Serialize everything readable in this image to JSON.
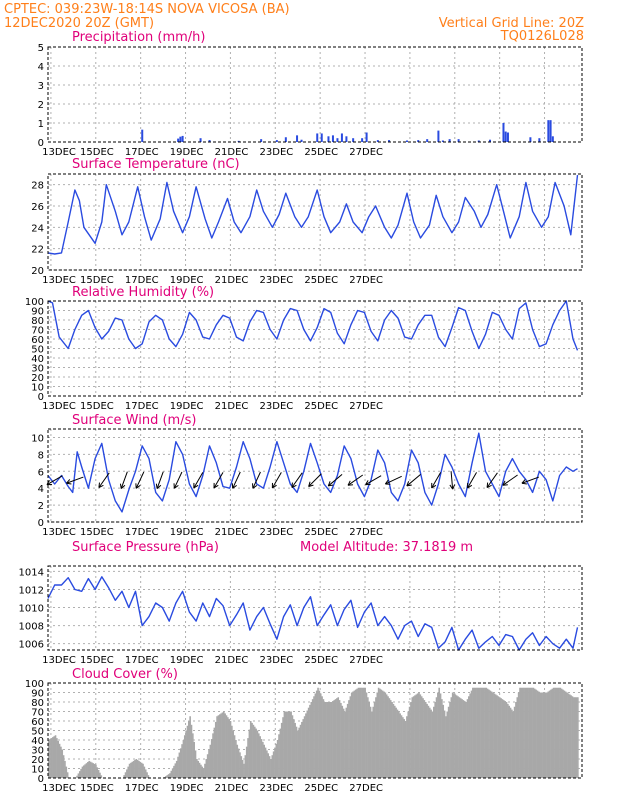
{
  "header": {
    "line1_left": "CPTEC:    039:23W-18:14S    NOVA VICOSA (BA)",
    "line2_left": "12DEC2020 20Z (GMT)",
    "line1_right": "Vertical Grid Line: 20Z",
    "line2_right": "TQ0126L028"
  },
  "colors": {
    "header": "#ff7f1a",
    "title": "#e0007a",
    "series": "#2a4be0",
    "cloud": "#a8a8a8"
  },
  "date_labels": [
    "13DEC",
    "15DEC",
    "17DEC",
    "19DEC",
    "21DEC",
    "23DEC",
    "25DEC",
    "27DEC"
  ],
  "chart_data": [
    {
      "type": "bar",
      "title": "Precipitation (mm/h)",
      "ylim": [
        0,
        5
      ],
      "yticks": [
        0,
        1,
        2,
        3,
        4,
        5
      ],
      "x_units": "days since 12DEC2020 20Z",
      "points": [
        [
          4.2,
          0.65
        ],
        [
          5.8,
          0.18
        ],
        [
          5.9,
          0.28
        ],
        [
          6.0,
          0.32
        ],
        [
          6.8,
          0.2
        ],
        [
          7.2,
          0.1
        ],
        [
          8.5,
          0.06
        ],
        [
          9.5,
          0.15
        ],
        [
          10.2,
          0.1
        ],
        [
          10.6,
          0.25
        ],
        [
          11.1,
          0.35
        ],
        [
          11.3,
          0.12
        ],
        [
          12.0,
          0.45
        ],
        [
          12.2,
          0.45
        ],
        [
          12.5,
          0.3
        ],
        [
          12.7,
          0.35
        ],
        [
          12.9,
          0.2
        ],
        [
          13.1,
          0.45
        ],
        [
          13.3,
          0.3
        ],
        [
          13.6,
          0.2
        ],
        [
          14.0,
          0.2
        ],
        [
          14.2,
          0.5
        ],
        [
          14.7,
          0.1
        ],
        [
          15.2,
          0.1
        ],
        [
          16.0,
          0.08
        ],
        [
          16.5,
          0.1
        ],
        [
          16.9,
          0.15
        ],
        [
          17.4,
          0.6
        ],
        [
          17.6,
          0.08
        ],
        [
          17.9,
          0.15
        ],
        [
          18.3,
          0.15
        ],
        [
          19.2,
          0.08
        ],
        [
          19.7,
          0.12
        ],
        [
          20.3,
          1.0
        ],
        [
          20.4,
          0.55
        ],
        [
          20.5,
          0.5
        ],
        [
          21.5,
          0.25
        ],
        [
          21.9,
          0.2
        ],
        [
          22.3,
          1.15
        ],
        [
          22.4,
          1.15
        ],
        [
          22.5,
          0.3
        ]
      ]
    },
    {
      "type": "line",
      "title": "Surface Temperature (nC)",
      "ylim": [
        20,
        29
      ],
      "yticks": [
        20,
        22,
        24,
        26,
        28
      ],
      "x_units": "days since 12DEC2020 20Z",
      "x": [
        0,
        0.3,
        0.6,
        0.9,
        1.2,
        1.4,
        1.6,
        2.1,
        2.4,
        2.6,
        3.0,
        3.3,
        3.6,
        4.0,
        4.3,
        4.6,
        5.0,
        5.3,
        5.6,
        6.0,
        6.3,
        6.6,
        7.0,
        7.3,
        7.6,
        8.0,
        8.3,
        8.6,
        9.0,
        9.3,
        9.6,
        10.0,
        10.3,
        10.6,
        11.0,
        11.3,
        11.6,
        12.0,
        12.3,
        12.6,
        13.0,
        13.3,
        13.6,
        14.0,
        14.3,
        14.6,
        15.0,
        15.3,
        15.6,
        16.0,
        16.3,
        16.6,
        17.0,
        17.3,
        17.6,
        18.0,
        18.3,
        18.6,
        19.0,
        19.3,
        19.6,
        20.0,
        20.3,
        20.6,
        21.0,
        21.3,
        21.6,
        22.0,
        22.3,
        22.6,
        23.0,
        23.3,
        23.6
      ],
      "y": [
        21.6,
        21.5,
        21.6,
        24.5,
        27.5,
        26.5,
        24.0,
        22.5,
        24.5,
        28.0,
        25.5,
        23.3,
        24.5,
        27.8,
        25.0,
        22.8,
        24.8,
        28.2,
        25.5,
        23.5,
        25.0,
        27.8,
        24.8,
        23.0,
        24.5,
        26.7,
        24.5,
        23.5,
        25.0,
        27.5,
        25.5,
        24.0,
        25.2,
        27.2,
        25.0,
        24.0,
        25.0,
        27.5,
        25.0,
        23.5,
        24.5,
        26.2,
        24.5,
        23.5,
        25.0,
        26.0,
        24.0,
        23.0,
        24.2,
        27.2,
        24.5,
        23.0,
        24.2,
        27.0,
        25.0,
        23.5,
        24.5,
        26.8,
        25.5,
        24.0,
        25.2,
        28.0,
        25.5,
        23.0,
        25.0,
        28.2,
        25.5,
        24.0,
        25.0,
        28.2,
        26.0,
        23.3,
        28.9
      ]
    },
    {
      "type": "line",
      "title": "Relative Humidity (%)",
      "ylim": [
        0,
        100
      ],
      "yticks": [
        0,
        10,
        20,
        30,
        40,
        50,
        60,
        70,
        80,
        90,
        100
      ],
      "x_units": "days since 12DEC2020 20Z",
      "x": [
        0,
        0.2,
        0.5,
        0.9,
        1.2,
        1.5,
        1.8,
        2.1,
        2.4,
        2.7,
        3.0,
        3.3,
        3.6,
        3.9,
        4.2,
        4.5,
        4.8,
        5.1,
        5.4,
        5.7,
        6.0,
        6.3,
        6.6,
        6.9,
        7.2,
        7.5,
        7.8,
        8.1,
        8.4,
        8.7,
        9.0,
        9.3,
        9.6,
        9.9,
        10.2,
        10.5,
        10.8,
        11.1,
        11.4,
        11.7,
        12.0,
        12.3,
        12.6,
        12.9,
        13.2,
        13.5,
        13.8,
        14.1,
        14.4,
        14.7,
        15.0,
        15.3,
        15.6,
        15.9,
        16.2,
        16.5,
        16.8,
        17.1,
        17.4,
        17.7,
        18.0,
        18.3,
        18.6,
        18.9,
        19.2,
        19.5,
        19.8,
        20.1,
        20.4,
        20.7,
        21.0,
        21.3,
        21.6,
        21.9,
        22.2,
        22.5,
        22.8,
        23.1,
        23.4,
        23.6
      ],
      "y": [
        100,
        98,
        62,
        50,
        70,
        85,
        90,
        72,
        60,
        68,
        82,
        80,
        60,
        50,
        55,
        78,
        85,
        80,
        60,
        52,
        65,
        88,
        80,
        62,
        60,
        75,
        85,
        82,
        62,
        58,
        78,
        90,
        88,
        70,
        60,
        80,
        92,
        90,
        70,
        58,
        72,
        92,
        88,
        66,
        55,
        75,
        90,
        88,
        68,
        58,
        80,
        90,
        82,
        62,
        60,
        75,
        85,
        85,
        62,
        52,
        72,
        93,
        90,
        68,
        50,
        65,
        88,
        85,
        70,
        60,
        92,
        98,
        70,
        52,
        55,
        75,
        90,
        100,
        60,
        48
      ]
    },
    {
      "type": "line",
      "title": "Surface Wind (m/s)",
      "ylim": [
        0,
        11
      ],
      "yticks": [
        0,
        2,
        4,
        6,
        8,
        10
      ],
      "x_units": "days since 12DEC2020 20Z",
      "x": [
        0,
        0.3,
        0.6,
        0.9,
        1.1,
        1.3,
        1.5,
        1.8,
        2.1,
        2.4,
        2.7,
        3.0,
        3.3,
        3.6,
        3.9,
        4.2,
        4.5,
        4.8,
        5.1,
        5.4,
        5.7,
        6.0,
        6.3,
        6.6,
        6.9,
        7.2,
        7.5,
        7.8,
        8.1,
        8.4,
        8.7,
        9.0,
        9.3,
        9.6,
        9.9,
        10.2,
        10.5,
        10.8,
        11.1,
        11.4,
        11.7,
        12.0,
        12.3,
        12.6,
        12.9,
        13.2,
        13.5,
        13.8,
        14.1,
        14.4,
        14.7,
        15.0,
        15.3,
        15.6,
        15.9,
        16.2,
        16.5,
        16.8,
        17.1,
        17.4,
        17.7,
        18.0,
        18.3,
        18.6,
        18.9,
        19.2,
        19.5,
        19.8,
        20.1,
        20.4,
        20.7,
        21.0,
        21.3,
        21.6,
        21.9,
        22.2,
        22.5,
        22.8,
        23.1,
        23.4,
        23.6
      ],
      "y": [
        5.5,
        4.5,
        5.5,
        4.2,
        3.5,
        8.3,
        6.5,
        4.0,
        7.5,
        9.3,
        5.0,
        2.5,
        1.2,
        3.8,
        6.0,
        9.0,
        7.5,
        3.5,
        2.5,
        5.0,
        9.5,
        8.0,
        4.5,
        3.0,
        5.5,
        9.0,
        7.0,
        4.2,
        4.0,
        6.5,
        9.5,
        7.5,
        4.5,
        4.0,
        6.5,
        9.5,
        7.0,
        4.5,
        3.5,
        6.0,
        9.3,
        7.0,
        4.5,
        3.5,
        5.5,
        9.0,
        7.5,
        4.5,
        3.0,
        5.0,
        8.5,
        7.0,
        3.5,
        2.5,
        4.5,
        8.5,
        7.0,
        3.5,
        2.0,
        4.5,
        8.0,
        6.5,
        4.5,
        3.0,
        7.0,
        10.5,
        6.0,
        4.5,
        3.0,
        6.0,
        7.5,
        6.0,
        5.0,
        3.5,
        6.0,
        5.0,
        2.5,
        5.5,
        6.5,
        6.0,
        6.3
      ],
      "arrows": [
        [
          0.3,
          240
        ],
        [
          1.2,
          250
        ],
        [
          2.5,
          215
        ],
        [
          3.4,
          200
        ],
        [
          4.1,
          205
        ],
        [
          5.0,
          200
        ],
        [
          5.8,
          205
        ],
        [
          6.7,
          210
        ],
        [
          7.6,
          210
        ],
        [
          8.4,
          205
        ],
        [
          9.3,
          205
        ],
        [
          10.2,
          210
        ],
        [
          11.1,
          215
        ],
        [
          11.9,
          225
        ],
        [
          12.8,
          230
        ],
        [
          13.7,
          235
        ],
        [
          14.5,
          240
        ],
        [
          15.4,
          245
        ],
        [
          16.3,
          230
        ],
        [
          17.3,
          210
        ],
        [
          18.0,
          175
        ],
        [
          18.9,
          210
        ],
        [
          19.8,
          215
        ],
        [
          20.6,
          235
        ],
        [
          21.5,
          250
        ]
      ]
    },
    {
      "type": "line",
      "title": "Surface Pressure (hPa)",
      "annotation": "Model Altitude: 37.1819 m",
      "ylim": [
        1005.3,
        1014.6
      ],
      "yticks": [
        1006,
        1008,
        1010,
        1012,
        1014
      ],
      "x_units": "days since 12DEC2020 20Z",
      "x": [
        0,
        0.3,
        0.6,
        0.9,
        1.2,
        1.5,
        1.8,
        2.1,
        2.4,
        2.7,
        3.0,
        3.3,
        3.6,
        3.9,
        4.2,
        4.5,
        4.8,
        5.1,
        5.4,
        5.7,
        6.0,
        6.3,
        6.6,
        6.9,
        7.2,
        7.5,
        7.8,
        8.1,
        8.4,
        8.7,
        9.0,
        9.3,
        9.6,
        9.9,
        10.2,
        10.5,
        10.8,
        11.1,
        11.4,
        11.7,
        12.0,
        12.3,
        12.6,
        12.9,
        13.2,
        13.5,
        13.8,
        14.1,
        14.4,
        14.7,
        15.0,
        15.3,
        15.6,
        15.9,
        16.2,
        16.5,
        16.8,
        17.1,
        17.4,
        17.7,
        18.0,
        18.3,
        18.6,
        18.9,
        19.2,
        19.5,
        19.8,
        20.1,
        20.4,
        20.7,
        21.0,
        21.3,
        21.6,
        21.9,
        22.2,
        22.5,
        22.8,
        23.1,
        23.4,
        23.6
      ],
      "y": [
        1011.0,
        1012.5,
        1012.5,
        1013.3,
        1012.0,
        1011.8,
        1013.2,
        1012.0,
        1013.4,
        1012.2,
        1010.8,
        1011.8,
        1010.0,
        1011.8,
        1008.0,
        1009.0,
        1010.5,
        1010.0,
        1008.5,
        1010.5,
        1011.8,
        1009.5,
        1008.5,
        1010.5,
        1009.0,
        1011.0,
        1010.2,
        1008.0,
        1009.2,
        1010.5,
        1007.5,
        1009.0,
        1010.0,
        1008.2,
        1006.5,
        1009.0,
        1010.3,
        1008.0,
        1010.0,
        1011.2,
        1008.0,
        1009.2,
        1010.3,
        1008.0,
        1009.8,
        1010.8,
        1007.8,
        1009.5,
        1010.5,
        1008.0,
        1009.0,
        1008.0,
        1006.5,
        1008.0,
        1008.5,
        1006.8,
        1008.2,
        1007.8,
        1005.5,
        1006.2,
        1007.8,
        1005.3,
        1006.5,
        1007.5,
        1005.5,
        1006.2,
        1006.8,
        1005.8,
        1007.0,
        1006.8,
        1005.3,
        1006.5,
        1007.2,
        1005.8,
        1006.8,
        1006.0,
        1005.5,
        1006.5,
        1005.5,
        1007.8
      ]
    },
    {
      "type": "area",
      "title": "Cloud Cover (%)",
      "ylim": [
        0,
        100
      ],
      "yticks": [
        0,
        10,
        20,
        30,
        40,
        50,
        60,
        70,
        80,
        90,
        100
      ],
      "x_units": "days since 12DEC2020 20Z",
      "x": [
        0,
        0.3,
        0.6,
        0.9,
        1.2,
        1.5,
        1.8,
        2.1,
        2.4,
        2.7,
        3.0,
        3.3,
        3.6,
        3.9,
        4.2,
        4.5,
        4.8,
        5.1,
        5.4,
        5.7,
        6.0,
        6.3,
        6.6,
        6.9,
        7.2,
        7.5,
        7.8,
        8.1,
        8.4,
        8.7,
        9.0,
        9.3,
        9.6,
        9.9,
        10.2,
        10.5,
        10.8,
        11.1,
        11.4,
        11.7,
        12.0,
        12.3,
        12.6,
        12.9,
        13.2,
        13.5,
        13.8,
        14.1,
        14.4,
        14.7,
        15.0,
        15.3,
        15.6,
        15.9,
        16.2,
        16.5,
        16.8,
        17.1,
        17.4,
        17.7,
        18.0,
        18.3,
        18.6,
        18.9,
        19.2,
        19.5,
        19.8,
        20.1,
        20.4,
        20.7,
        21.0,
        21.3,
        21.6,
        21.9,
        22.2,
        22.5,
        22.8,
        23.1,
        23.4,
        23.6
      ],
      "y": [
        40,
        45,
        30,
        0,
        0,
        12,
        18,
        14,
        0,
        0,
        0,
        0,
        15,
        20,
        15,
        0,
        0,
        0,
        5,
        18,
        40,
        65,
        20,
        10,
        35,
        65,
        70,
        60,
        35,
        15,
        60,
        50,
        35,
        20,
        40,
        70,
        70,
        50,
        65,
        80,
        95,
        80,
        80,
        85,
        70,
        90,
        95,
        95,
        70,
        95,
        90,
        80,
        70,
        60,
        85,
        90,
        80,
        70,
        95,
        65,
        90,
        85,
        80,
        95,
        95,
        95,
        90,
        85,
        80,
        70,
        95,
        95,
        95,
        90,
        90,
        95,
        95,
        90,
        85,
        85
      ]
    }
  ]
}
